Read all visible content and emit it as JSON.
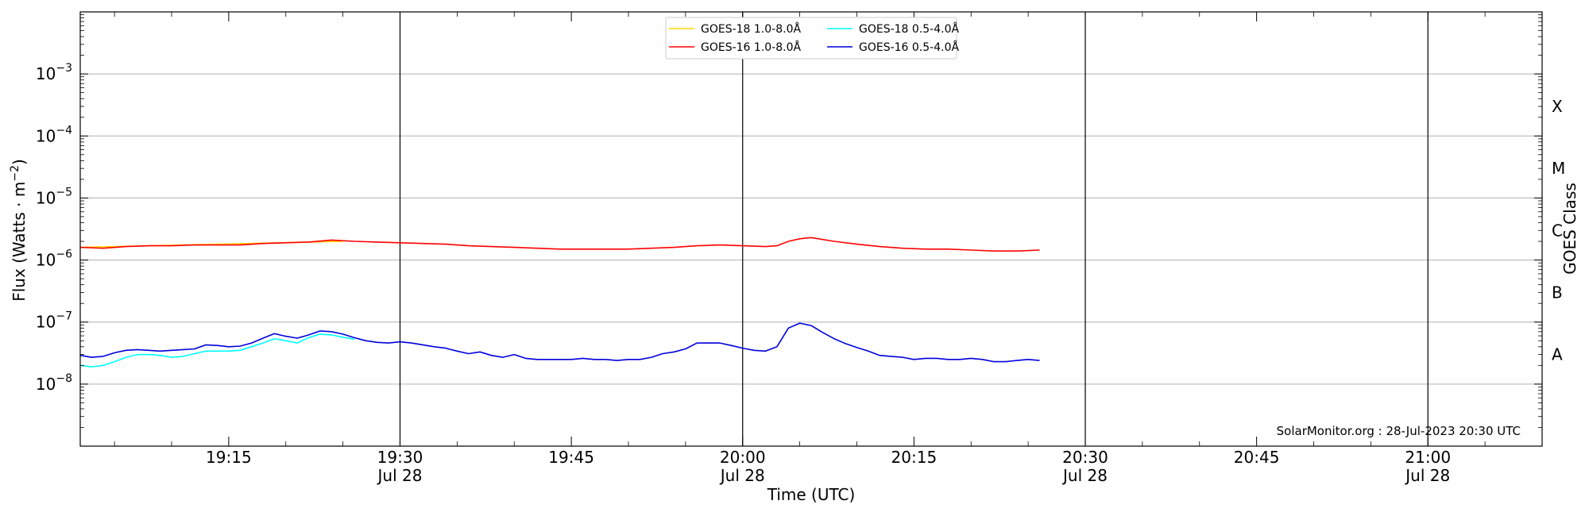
{
  "chart_data": {
    "type": "line",
    "title": "",
    "xlabel": "Time (UTC)",
    "ylabel": "Flux (Watts · m",
    "ylabel_sup": "−2",
    "ylabel_close": ")",
    "y2label": "GOES Class",
    "yscale": "log",
    "xlim": [
      "19:02",
      "21:10"
    ],
    "ylim": [
      1e-09,
      0.01
    ],
    "grid": "horizontal",
    "legend_placement": "top-center",
    "y_ticks": [
      {
        "value": 1e-08,
        "base": "10",
        "exp": "−8"
      },
      {
        "value": 1e-07,
        "base": "10",
        "exp": "−7"
      },
      {
        "value": 1e-06,
        "base": "10",
        "exp": "−6"
      },
      {
        "value": 1e-05,
        "base": "10",
        "exp": "−5"
      },
      {
        "value": 0.0001,
        "base": "10",
        "exp": "−4"
      },
      {
        "value": 0.001,
        "base": "10",
        "exp": "−3"
      }
    ],
    "x_ticks": [
      {
        "time": "19:15",
        "label": "19:15",
        "date": ""
      },
      {
        "time": "19:30",
        "label": "19:30",
        "date": "Jul 28"
      },
      {
        "time": "19:45",
        "label": "19:45",
        "date": ""
      },
      {
        "time": "20:00",
        "label": "20:00",
        "date": "Jul 28"
      },
      {
        "time": "20:15",
        "label": "20:15",
        "date": ""
      },
      {
        "time": "20:30",
        "label": "20:30",
        "date": "Jul 28"
      },
      {
        "time": "20:45",
        "label": "20:45",
        "date": ""
      },
      {
        "time": "21:00",
        "label": "21:00",
        "date": "Jul 28"
      }
    ],
    "goes_classes": [
      {
        "label": "A",
        "value": 3e-08
      },
      {
        "label": "B",
        "value": 3e-07
      },
      {
        "label": "C",
        "value": 3e-06
      },
      {
        "label": "M",
        "value": 3e-05
      },
      {
        "label": "X",
        "value": 0.0003
      }
    ],
    "credit": "SolarMonitor.org : 28-Jul-2023 20:30 UTC",
    "series": [
      {
        "name": "GOES-18 1.0-8.0Å",
        "color": "#ffd700",
        "x": [
          "19:02",
          "19:25"
        ],
        "y": [
          1.6e-06,
          2e-06
        ]
      },
      {
        "name": "GOES-18 0.5-4.0Å",
        "color": "#00ffff",
        "x": [
          "19:02",
          "19:03",
          "19:04",
          "19:05",
          "19:06",
          "19:07",
          "19:08",
          "19:09",
          "19:10",
          "19:11",
          "19:12",
          "19:13",
          "19:14",
          "19:15",
          "19:16",
          "19:17",
          "19:18",
          "19:19",
          "19:20",
          "19:21",
          "19:22",
          "19:23",
          "19:24",
          "19:25",
          "19:26"
        ],
        "y": [
          2e-08,
          1.9e-08,
          2e-08,
          2.3e-08,
          2.7e-08,
          3e-08,
          3e-08,
          2.9e-08,
          2.7e-08,
          2.8e-08,
          3.1e-08,
          3.4e-08,
          3.4e-08,
          3.4e-08,
          3.5e-08,
          4e-08,
          4.6e-08,
          5.4e-08,
          5e-08,
          4.6e-08,
          5.6e-08,
          6.4e-08,
          6.2e-08,
          5.7e-08,
          5.3e-08
        ]
      },
      {
        "name": "GOES-16 1.0-8.0Å",
        "color": "#ff0000",
        "x": [
          "19:02",
          "19:04",
          "19:06",
          "19:08",
          "19:10",
          "19:12",
          "19:14",
          "19:16",
          "19:18",
          "19:20",
          "19:22",
          "19:24",
          "19:26",
          "19:28",
          "19:30",
          "19:32",
          "19:34",
          "19:36",
          "19:38",
          "19:40",
          "19:42",
          "19:44",
          "19:46",
          "19:48",
          "19:50",
          "19:52",
          "19:54",
          "19:56",
          "19:58",
          "20:00",
          "20:02",
          "20:03",
          "20:04",
          "20:05",
          "20:06",
          "20:08",
          "20:10",
          "20:12",
          "20:14",
          "20:16",
          "20:18",
          "20:20",
          "20:22",
          "20:24",
          "20:26"
        ],
        "y": [
          1.6e-06,
          1.55e-06,
          1.65e-06,
          1.7e-06,
          1.7e-06,
          1.75e-06,
          1.75e-06,
          1.75e-06,
          1.85e-06,
          1.9e-06,
          1.95e-06,
          2.1e-06,
          2e-06,
          1.95e-06,
          1.9e-06,
          1.85e-06,
          1.8e-06,
          1.7e-06,
          1.65e-06,
          1.6e-06,
          1.55e-06,
          1.5e-06,
          1.5e-06,
          1.5e-06,
          1.5e-06,
          1.55e-06,
          1.6e-06,
          1.7e-06,
          1.75e-06,
          1.7e-06,
          1.65e-06,
          1.7e-06,
          2e-06,
          2.2e-06,
          2.3e-06,
          2e-06,
          1.8e-06,
          1.65e-06,
          1.55e-06,
          1.5e-06,
          1.5e-06,
          1.45e-06,
          1.4e-06,
          1.4e-06,
          1.45e-06
        ]
      },
      {
        "name": "GOES-16 0.5-4.0Å",
        "color": "#0000dd",
        "x": [
          "19:02",
          "19:03",
          "19:04",
          "19:05",
          "19:06",
          "19:07",
          "19:08",
          "19:09",
          "19:10",
          "19:11",
          "19:12",
          "19:13",
          "19:14",
          "19:15",
          "19:16",
          "19:17",
          "19:18",
          "19:19",
          "19:20",
          "19:21",
          "19:22",
          "19:23",
          "19:24",
          "19:25",
          "19:26",
          "19:27",
          "19:28",
          "19:29",
          "19:30",
          "19:31",
          "19:32",
          "19:33",
          "19:34",
          "19:35",
          "19:36",
          "19:37",
          "19:38",
          "19:39",
          "19:40",
          "19:41",
          "19:42",
          "19:43",
          "19:44",
          "19:45",
          "19:46",
          "19:47",
          "19:48",
          "19:49",
          "19:50",
          "19:51",
          "19:52",
          "19:53",
          "19:54",
          "19:55",
          "19:56",
          "19:57",
          "19:58",
          "19:59",
          "20:00",
          "20:01",
          "20:02",
          "20:03",
          "20:04",
          "20:05",
          "20:06",
          "20:07",
          "20:08",
          "20:09",
          "20:10",
          "20:11",
          "20:12",
          "20:13",
          "20:14",
          "20:15",
          "20:16",
          "20:17",
          "20:18",
          "20:19",
          "20:20",
          "20:21",
          "20:22",
          "20:23",
          "20:24",
          "20:25",
          "20:26"
        ],
        "y": [
          2.9e-08,
          2.7e-08,
          2.8e-08,
          3.2e-08,
          3.5e-08,
          3.6e-08,
          3.5e-08,
          3.4e-08,
          3.5e-08,
          3.6e-08,
          3.7e-08,
          4.3e-08,
          4.2e-08,
          4e-08,
          4.1e-08,
          4.6e-08,
          5.5e-08,
          6.5e-08,
          5.9e-08,
          5.5e-08,
          6.2e-08,
          7.2e-08,
          7e-08,
          6.4e-08,
          5.6e-08,
          5e-08,
          4.7e-08,
          4.6e-08,
          4.8e-08,
          4.6e-08,
          4.3e-08,
          4e-08,
          3.8e-08,
          3.4e-08,
          3.1e-08,
          3.3e-08,
          2.9e-08,
          2.7e-08,
          3e-08,
          2.6e-08,
          2.5e-08,
          2.5e-08,
          2.5e-08,
          2.5e-08,
          2.6e-08,
          2.5e-08,
          2.5e-08,
          2.4e-08,
          2.5e-08,
          2.5e-08,
          2.7e-08,
          3.1e-08,
          3.3e-08,
          3.7e-08,
          4.6e-08,
          4.6e-08,
          4.6e-08,
          4.2e-08,
          3.8e-08,
          3.5e-08,
          3.4e-08,
          4e-08,
          8e-08,
          9.6e-08,
          8.8e-08,
          6.8e-08,
          5.4e-08,
          4.5e-08,
          3.9e-08,
          3.4e-08,
          2.9e-08,
          2.8e-08,
          2.7e-08,
          2.5e-08,
          2.6e-08,
          2.6e-08,
          2.5e-08,
          2.5e-08,
          2.6e-08,
          2.5e-08,
          2.3e-08,
          2.3e-08,
          2.4e-08,
          2.5e-08,
          2.4e-08
        ]
      }
    ],
    "legend_order": [
      0,
      1,
      2,
      3
    ]
  }
}
